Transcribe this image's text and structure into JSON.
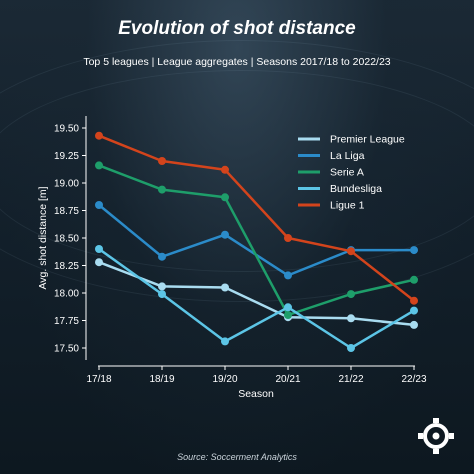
{
  "title": "Evolution of shot distance",
  "subtitle": "Top 5 leagues | League aggregates | Seasons 2017/18 to 2022/23",
  "source": "Source: Soccerment Analytics",
  "chart_data": {
    "type": "line",
    "title": "Evolution of shot distance",
    "xlabel": "Season",
    "ylabel": "Avg. shot distance [m]",
    "categories": [
      "17/18",
      "18/19",
      "19/20",
      "20/21",
      "21/22",
      "22/23"
    ],
    "ylim": [
      17.4,
      19.6
    ],
    "yticks": [
      17.5,
      17.75,
      18.0,
      18.25,
      18.5,
      18.75,
      19.0,
      19.25,
      19.5
    ],
    "ytick_labels": [
      "17.50",
      "17.75",
      "18.00",
      "18.25",
      "18.50",
      "18.75",
      "19.00",
      "19.25",
      "19.50"
    ],
    "grid": false,
    "legend_position": "top-right",
    "series": [
      {
        "name": "Premier League",
        "color": "#a9dcf0",
        "values": [
          18.28,
          18.06,
          18.05,
          17.78,
          17.77,
          17.71
        ]
      },
      {
        "name": "La Liga",
        "color": "#2b8bc9",
        "values": [
          18.8,
          18.33,
          18.53,
          18.16,
          18.39,
          18.39
        ]
      },
      {
        "name": "Serie A",
        "color": "#1e9e6a",
        "values": [
          19.16,
          18.94,
          18.87,
          17.8,
          17.99,
          18.12
        ]
      },
      {
        "name": "Bundesliga",
        "color": "#5cc5e6",
        "values": [
          18.4,
          17.99,
          17.56,
          17.87,
          17.5,
          17.84
        ]
      },
      {
        "name": "Ligue 1",
        "color": "#d3441c",
        "values": [
          19.43,
          19.2,
          19.12,
          18.5,
          18.38,
          17.93
        ]
      }
    ]
  }
}
